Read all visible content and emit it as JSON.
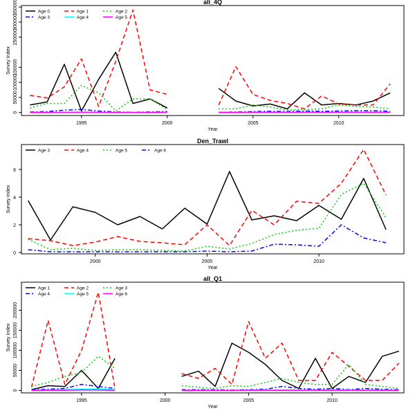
{
  "chart_data": [
    {
      "type": "line",
      "title": "all_4Q",
      "xlabel": "Year",
      "ylabel": "Survey Index",
      "xlim": [
        1991.5,
        2013.8
      ],
      "ylim": [
        -10000,
        355000
      ],
      "xticks": [
        1995,
        2000,
        2005,
        2010
      ],
      "yticks": [
        0,
        50000,
        100000,
        150000,
        250000,
        300000,
        350000
      ],
      "legend_position": "top-left",
      "legend_columns": 3,
      "series": [
        {
          "name": "Age 0",
          "color": "#000000",
          "dash": "solid",
          "x": [
            1992,
            1993,
            1994,
            1995,
            1996,
            1997,
            1998,
            1999,
            2000,
            null,
            2003,
            2004,
            2005,
            2006,
            2007,
            2008,
            2009,
            2010,
            2011,
            2012,
            2013
          ],
          "y": [
            25000,
            35000,
            160000,
            5000,
            110000,
            200000,
            30000,
            45000,
            15000,
            null,
            80000,
            38000,
            22000,
            28000,
            12000,
            65000,
            25000,
            30000,
            25000,
            38000,
            65000
          ]
        },
        {
          "name": "Age 1",
          "color": "#ff0000",
          "dash": "dashed",
          "x": [
            1992,
            1993,
            1994,
            1995,
            1996,
            1997,
            1998,
            1999,
            2000,
            null,
            2003,
            2004,
            2005,
            2006,
            2007,
            2008,
            2009,
            2010,
            2011,
            2012,
            2013
          ],
          "y": [
            57000,
            48000,
            85000,
            178000,
            20000,
            170000,
            340000,
            75000,
            60000,
            null,
            25000,
            152000,
            60000,
            40000,
            30000,
            12000,
            55000,
            28000,
            25000,
            25000,
            95000
          ]
        },
        {
          "name": "Age 2",
          "color": "#00cc00",
          "dash": "dotted",
          "x": [
            1992,
            1993,
            1994,
            1995,
            1996,
            1997,
            1998,
            1999,
            2000,
            null,
            2003,
            2004,
            2005,
            2006,
            2007,
            2008,
            2009,
            2010,
            2011,
            2012,
            2013
          ],
          "y": [
            15000,
            30000,
            30000,
            90000,
            65000,
            5000,
            45000,
            45000,
            10000,
            null,
            12000,
            12000,
            25000,
            18000,
            8000,
            10000,
            12000,
            25000,
            20000,
            18000,
            12000
          ]
        },
        {
          "name": "Age 3",
          "color": "#0000ff",
          "dash": "dashdot",
          "x": [
            1992,
            1993,
            1994,
            1995,
            1996,
            1997,
            1998,
            1999,
            2000,
            null,
            2003,
            2004,
            2005,
            2006,
            2007,
            2008,
            2009,
            2010,
            2011,
            2012,
            2013
          ],
          "y": [
            2000,
            3000,
            8000,
            10000,
            5000,
            2000,
            1000,
            2000,
            3000,
            null,
            1000,
            2000,
            3000,
            4000,
            3000,
            5000,
            4000,
            5000,
            6000,
            6000,
            4000
          ]
        },
        {
          "name": "Age 4",
          "color": "#00ffff",
          "dash": "solid",
          "x": [
            1992,
            1993,
            1994,
            1995,
            1996,
            1997,
            1998,
            1999,
            2000,
            null,
            2003,
            2004,
            2005,
            2006,
            2007,
            2008,
            2009,
            2010,
            2011,
            2012,
            2013
          ],
          "y": [
            500,
            500,
            1000,
            1500,
            1000,
            500,
            500,
            500,
            1000,
            null,
            500,
            500,
            1000,
            1000,
            1000,
            1500,
            1000,
            1000,
            1500,
            1500,
            1000
          ]
        },
        {
          "name": "Age 5",
          "color": "#ff00ff",
          "dash": "solid",
          "x": [
            1992,
            1993,
            1994,
            1995,
            1996,
            1997,
            1998,
            1999,
            2000,
            null,
            2003,
            2004,
            2005,
            2006,
            2007,
            2008,
            2009,
            2010,
            2011,
            2012,
            2013
          ],
          "y": [
            0,
            0,
            500,
            500,
            500,
            0,
            0,
            0,
            500,
            null,
            0,
            0,
            500,
            500,
            500,
            500,
            500,
            500,
            500,
            500,
            500
          ]
        }
      ]
    },
    {
      "type": "line",
      "title": "Den_Trawl",
      "xlabel": "Year",
      "ylabel": "Survey Index",
      "xlim": [
        1996.7,
        2013.8
      ],
      "ylim": [
        -0.1,
        7.8
      ],
      "xticks": [
        2000,
        2005,
        2010
      ],
      "yticks": [
        0,
        2,
        4,
        6
      ],
      "legend_position": "top-left",
      "legend_columns": 4,
      "series": [
        {
          "name": "Age 3",
          "color": "#000000",
          "dash": "solid",
          "x": [
            1997,
            1998,
            1999,
            2000,
            2001,
            2002,
            2003,
            2004,
            2005,
            2006,
            2007,
            2008,
            2009,
            2010,
            2011,
            2012,
            2013
          ],
          "y": [
            3.75,
            0.9,
            3.3,
            2.9,
            2.0,
            2.6,
            1.7,
            3.2,
            2.05,
            5.85,
            2.35,
            2.65,
            2.3,
            3.4,
            2.4,
            5.35,
            1.65
          ]
        },
        {
          "name": "Age 4",
          "color": "#ff0000",
          "dash": "dashed",
          "x": [
            1997,
            1998,
            1999,
            2000,
            2001,
            2002,
            2003,
            2004,
            2005,
            2006,
            2007,
            2008,
            2009,
            2010,
            2011,
            2012,
            2013
          ],
          "y": [
            1.0,
            0.85,
            0.5,
            0.75,
            1.15,
            0.8,
            0.7,
            0.55,
            2.0,
            0.5,
            3.05,
            2.0,
            3.7,
            3.55,
            5.0,
            7.45,
            4.15
          ]
        },
        {
          "name": "Age 5",
          "color": "#00cc00",
          "dash": "dotted",
          "x": [
            1997,
            1998,
            1999,
            2000,
            2001,
            2002,
            2003,
            2004,
            2005,
            2006,
            2007,
            2008,
            2009,
            2010,
            2011,
            2012,
            2013
          ],
          "y": [
            0.95,
            0.2,
            0.3,
            0.15,
            0.2,
            0.2,
            0.15,
            0.1,
            0.45,
            0.25,
            0.65,
            1.3,
            1.6,
            1.75,
            4.2,
            5.0,
            2.5
          ]
        },
        {
          "name": "Age 6",
          "color": "#0000ff",
          "dash": "dashdot",
          "x": [
            1997,
            1998,
            1999,
            2000,
            2001,
            2002,
            2003,
            2004,
            2005,
            2006,
            2007,
            2008,
            2009,
            2010,
            2011,
            2012,
            2013
          ],
          "y": [
            0.2,
            0.05,
            0.05,
            0.05,
            0.05,
            0.05,
            0.05,
            0.05,
            0.1,
            0.05,
            0.1,
            0.6,
            0.55,
            0.45,
            2.0,
            1.05,
            0.7
          ]
        }
      ]
    },
    {
      "type": "line",
      "title": "all_Q1",
      "xlabel": "Year",
      "ylabel": "Survey Index",
      "xlim": [
        1991.4,
        2014.3
      ],
      "ylim": [
        -6000,
        270000
      ],
      "xticks": [
        1995,
        2000,
        2005,
        2010
      ],
      "yticks": [
        0,
        50000,
        100000,
        150000,
        200000
      ],
      "legend_position": "top-left",
      "legend_columns": 3,
      "series": [
        {
          "name": "Age 1",
          "color": "#000000",
          "dash": "solid",
          "x": [
            1992,
            1993,
            1994,
            1995,
            1996,
            1997,
            null,
            2001,
            2002,
            2003,
            2004,
            2005,
            2006,
            2007,
            2008,
            2009,
            2010,
            2011,
            2012,
            2013,
            2014
          ],
          "y": [
            2000,
            12000,
            10000,
            50000,
            5000,
            80000,
            null,
            35000,
            48000,
            10000,
            118000,
            95000,
            65000,
            25000,
            5000,
            80000,
            5000,
            35000,
            20000,
            85000,
            98000
          ]
        },
        {
          "name": "Age 2",
          "color": "#ff0000",
          "dash": "dashed",
          "x": [
            1992,
            1993,
            1994,
            1995,
            1996,
            1997,
            null,
            2001,
            2002,
            2003,
            2004,
            2005,
            2006,
            2007,
            2008,
            2009,
            2010,
            2011,
            2012,
            2013,
            2014
          ],
          "y": [
            8000,
            175000,
            15000,
            100000,
            245000,
            5000,
            null,
            42000,
            30000,
            55000,
            15000,
            172000,
            80000,
            118000,
            25000,
            25000,
            95000,
            60000,
            25000,
            25000,
            68000
          ]
        },
        {
          "name": "Age 3",
          "color": "#00cc00",
          "dash": "dotted",
          "x": [
            1992,
            1993,
            1994,
            1995,
            1996,
            1997,
            null,
            2001,
            2002,
            2003,
            2004,
            2005,
            2006,
            2007,
            2008,
            2009,
            2010,
            2011,
            2012,
            2013,
            2014
          ],
          "y": [
            10000,
            20000,
            35000,
            45000,
            85000,
            55000,
            null,
            12000,
            8000,
            5000,
            12000,
            10000,
            20000,
            30000,
            20000,
            15000,
            15000,
            65000,
            15000,
            10000,
            5000
          ]
        },
        {
          "name": "Age 4",
          "color": "#0000ff",
          "dash": "dashdot",
          "x": [
            1992,
            1993,
            1994,
            1995,
            1996,
            1997,
            null,
            2001,
            2002,
            2003,
            2004,
            2005,
            2006,
            2007,
            2008,
            2009,
            2010,
            2011,
            2012,
            2013,
            2014
          ],
          "y": [
            2000,
            3000,
            5000,
            15000,
            10000,
            5000,
            null,
            2000,
            2000,
            2000,
            1000,
            2000,
            3000,
            10000,
            5000,
            3000,
            5000,
            2000,
            5000,
            3000,
            2000
          ]
        },
        {
          "name": "Age 5",
          "color": "#00ffff",
          "dash": "solid",
          "x": [
            1992,
            1993,
            1994,
            1995,
            1996,
            1997,
            null,
            2001,
            2002,
            2003,
            2004,
            2005,
            2006,
            2007,
            2008,
            2009,
            2010,
            2011,
            2012,
            2013,
            2014
          ],
          "y": [
            500,
            1000,
            2000,
            3000,
            4000,
            2000,
            null,
            500,
            500,
            500,
            500,
            1000,
            1000,
            1500,
            1000,
            1000,
            1500,
            1000,
            1000,
            1000,
            500
          ]
        },
        {
          "name": "Age 6",
          "color": "#ff00ff",
          "dash": "solid",
          "x": [
            1992,
            1993,
            1994,
            1995,
            1996,
            1997,
            null,
            2001,
            2002,
            2003,
            2004,
            2005,
            2006,
            2007,
            2008,
            2009,
            2010,
            2011,
            2012,
            2013,
            2014
          ],
          "y": [
            0,
            500,
            500,
            1000,
            1000,
            500,
            null,
            0,
            0,
            0,
            0,
            500,
            500,
            500,
            500,
            500,
            500,
            500,
            500,
            500,
            0
          ]
        }
      ]
    }
  ]
}
